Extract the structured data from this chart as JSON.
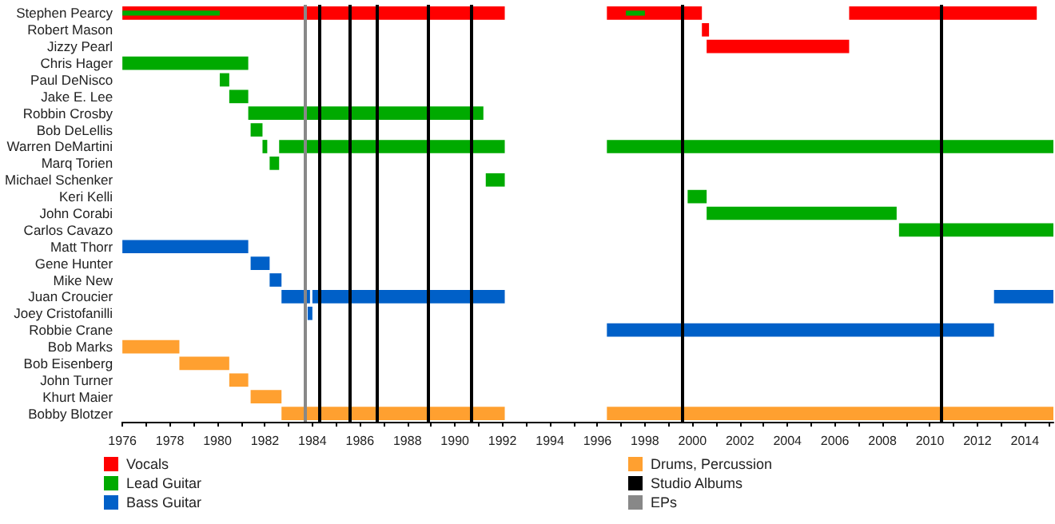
{
  "chart_data": {
    "type": "bar",
    "orientation": "horizontal",
    "legend": "bottom",
    "grid": false,
    "categories": [
      "Stephen Pearcy",
      "Robert Mason",
      "Jizzy Pearl",
      "Chris Hager",
      "Paul DeNisco",
      "Jake E. Lee",
      "Robbin Crosby",
      "Bob DeLellis",
      "Warren DeMartini",
      "Marq Torien",
      "Michael Schenker",
      "Keri Kelli",
      "John Corabi",
      "Carlos Cavazo",
      "Matt Thorr",
      "Gene Hunter",
      "Mike New",
      "Juan Croucier",
      "Joey Cristofanilli",
      "Robbie Crane",
      "Bob Marks",
      "Bob Eisenberg",
      "John Turner",
      "Khurt Maier",
      "Bobby Blotzer"
    ],
    "xlim": [
      1976,
      2015.2
    ],
    "xticks": [
      1976,
      {
        "value": 1977,
        "label": null
      },
      1978,
      {
        "value": 1979,
        "label": null
      },
      1980,
      {
        "value": 1981,
        "label": null
      },
      1982,
      {
        "value": 1983,
        "label": null
      },
      1984,
      {
        "value": 1985,
        "label": null
      },
      1986,
      {
        "value": 1987,
        "label": null
      },
      1988,
      {
        "value": 1989,
        "label": null
      },
      1990,
      {
        "value": 1991,
        "label": null
      },
      1992,
      {
        "value": 1993,
        "label": null
      },
      1994,
      {
        "value": 1995,
        "label": null
      },
      1996,
      {
        "value": 1997,
        "label": null
      },
      1998,
      {
        "value": 1999,
        "label": null
      },
      2000,
      {
        "value": 2001,
        "label": null
      },
      2002,
      {
        "value": 2003,
        "label": null
      },
      2004,
      {
        "value": 2005,
        "label": null
      },
      2006,
      {
        "value": 2007,
        "label": null
      },
      2008,
      {
        "value": 2009,
        "label": null
      },
      2010,
      {
        "value": 2011,
        "label": null
      },
      2012,
      {
        "value": 2013,
        "label": null
      },
      2014,
      {
        "value": 2015,
        "label": null
      }
    ],
    "series": [
      {
        "name": "Vocals",
        "color": "#ff0000",
        "base": [
          1976,
          2000.4,
          2000.6,
          null,
          null,
          null,
          null,
          null,
          null,
          null,
          null,
          null,
          null,
          null,
          null,
          null,
          null,
          null,
          null,
          null,
          null,
          null,
          null,
          null,
          null
        ],
        "values": [
          16.1,
          0.3,
          6.0,
          null,
          null,
          null,
          null,
          null,
          null,
          null,
          null,
          null,
          null,
          null,
          null,
          null,
          null,
          null,
          null,
          null,
          null,
          null,
          null,
          null,
          null
        ]
      },
      {
        "color": "#ff0000",
        "base": [
          1996.4,
          null,
          null,
          null,
          null,
          null,
          null,
          null,
          null,
          null,
          null,
          null,
          null,
          null,
          null,
          null,
          null,
          null,
          null,
          null,
          null,
          null,
          null,
          null,
          null
        ],
        "values": [
          4.0,
          null,
          null,
          null,
          null,
          null,
          null,
          null,
          null,
          null,
          null,
          null,
          null,
          null,
          null,
          null,
          null,
          null,
          null,
          null,
          null,
          null,
          null,
          null,
          null
        ]
      },
      {
        "color": "#ff0000",
        "base": [
          2006.6,
          null,
          null,
          null,
          null,
          null,
          null,
          null,
          null,
          null,
          null,
          null,
          null,
          null,
          null,
          null,
          null,
          null,
          null,
          null,
          null,
          null,
          null,
          null,
          null
        ],
        "values": [
          7.9,
          null,
          null,
          null,
          null,
          null,
          null,
          null,
          null,
          null,
          null,
          null,
          null,
          null,
          null,
          null,
          null,
          null,
          null,
          null,
          null,
          null,
          null,
          null,
          null
        ]
      },
      {
        "name": "Lead Guitar",
        "color": "#00aa00",
        "base": [
          1976,
          null,
          null,
          1976,
          1980.1,
          1980.5,
          1981.3,
          1981.4,
          1981.9,
          1982.2,
          1991.3,
          1999.8,
          2000.6,
          2008.7,
          null,
          null,
          null,
          null,
          null,
          null,
          null,
          null,
          null,
          null,
          null
        ],
        "values": [
          4.1,
          null,
          null,
          5.3,
          0.4,
          0.8,
          9.9,
          0.5,
          0.2,
          0.4,
          0.8,
          0.8,
          8.0,
          6.5,
          null,
          null,
          null,
          null,
          null,
          null,
          null,
          null,
          null,
          null,
          null
        ]
      },
      {
        "color": "#00aa00",
        "base": [
          1997.2,
          null,
          null,
          null,
          null,
          null,
          null,
          null,
          1982.6,
          null,
          null,
          null,
          null,
          null,
          null,
          null,
          null,
          null,
          null,
          null,
          null,
          null,
          null,
          null,
          null
        ],
        "values": [
          0.8,
          null,
          null,
          null,
          null,
          null,
          null,
          null,
          9.5,
          null,
          null,
          null,
          null,
          null,
          null,
          null,
          null,
          null,
          null,
          null,
          null,
          null,
          null,
          null,
          null
        ]
      },
      {
        "color": "#00aa00",
        "base": [
          null,
          null,
          null,
          null,
          null,
          null,
          null,
          null,
          1996.4,
          null,
          null,
          null,
          null,
          null,
          null,
          null,
          null,
          null,
          null,
          null,
          null,
          null,
          null,
          null,
          null
        ],
        "values": [
          null,
          null,
          null,
          null,
          null,
          null,
          null,
          null,
          18.8,
          null,
          null,
          null,
          null,
          null,
          null,
          null,
          null,
          null,
          null,
          null,
          null,
          null,
          null,
          null,
          null
        ]
      },
      {
        "name": "Bass Guitar",
        "color": "#0060c8",
        "base": [
          null,
          null,
          null,
          null,
          null,
          null,
          null,
          null,
          null,
          null,
          null,
          null,
          null,
          null,
          1976,
          1981.4,
          1982.2,
          1982.7,
          1983.8,
          1996.4,
          null,
          null,
          null,
          null,
          null
        ],
        "values": [
          null,
          null,
          null,
          null,
          null,
          null,
          null,
          null,
          null,
          null,
          null,
          null,
          null,
          null,
          5.3,
          0.8,
          0.5,
          1.2,
          0.2,
          16.3,
          null,
          null,
          null,
          null,
          null
        ]
      },
      {
        "color": "#0060c8",
        "base": [
          null,
          null,
          null,
          null,
          null,
          null,
          null,
          null,
          null,
          null,
          null,
          null,
          null,
          null,
          null,
          null,
          null,
          1984.0,
          null,
          null,
          null,
          null,
          null,
          null,
          null
        ],
        "values": [
          null,
          null,
          null,
          null,
          null,
          null,
          null,
          null,
          null,
          null,
          null,
          null,
          null,
          null,
          null,
          null,
          null,
          8.1,
          null,
          null,
          null,
          null,
          null,
          null,
          null
        ]
      },
      {
        "color": "#0060c8",
        "base": [
          null,
          null,
          null,
          null,
          null,
          null,
          null,
          null,
          null,
          null,
          null,
          null,
          null,
          null,
          null,
          null,
          null,
          2012.7,
          null,
          null,
          null,
          null,
          null,
          null,
          null
        ],
        "values": [
          null,
          null,
          null,
          null,
          null,
          null,
          null,
          null,
          null,
          null,
          null,
          null,
          null,
          null,
          null,
          null,
          null,
          2.5,
          null,
          null,
          null,
          null,
          null,
          null,
          null
        ]
      },
      {
        "name": "Drums, Percussion",
        "color": "#ffa030",
        "base": [
          null,
          null,
          null,
          null,
          null,
          null,
          null,
          null,
          null,
          null,
          null,
          null,
          null,
          null,
          null,
          null,
          null,
          null,
          null,
          null,
          1976,
          1978.4,
          1980.5,
          1981.4,
          1982.7
        ],
        "values": [
          null,
          null,
          null,
          null,
          null,
          null,
          null,
          null,
          null,
          null,
          null,
          null,
          null,
          null,
          null,
          null,
          null,
          null,
          null,
          null,
          2.4,
          2.1,
          0.8,
          1.3,
          9.4
        ]
      },
      {
        "color": "#ffa030",
        "base": [
          null,
          null,
          null,
          null,
          null,
          null,
          null,
          null,
          null,
          null,
          null,
          null,
          null,
          null,
          null,
          null,
          null,
          null,
          null,
          null,
          null,
          null,
          null,
          null,
          1996.4
        ],
        "values": [
          null,
          null,
          null,
          null,
          null,
          null,
          null,
          null,
          null,
          null,
          null,
          null,
          null,
          null,
          null,
          null,
          null,
          null,
          null,
          null,
          null,
          null,
          null,
          null,
          18.8
        ]
      }
    ],
    "ref_lines": [
      {
        "axis": "x",
        "value": 1984.3,
        "label": "Studio Albums",
        "color": "#000000"
      },
      {
        "axis": "x",
        "value": 1985.6,
        "color": "#000000"
      },
      {
        "axis": "x",
        "value": 1986.7,
        "color": "#000000"
      },
      {
        "axis": "x",
        "value": 1988.9,
        "color": "#000000"
      },
      {
        "axis": "x",
        "value": 1990.7,
        "color": "#000000"
      },
      {
        "axis": "x",
        "value": 1999.6,
        "color": "#000000"
      },
      {
        "axis": "x",
        "value": 2010.5,
        "color": "#000000"
      },
      {
        "axis": "x",
        "value": 1983.7,
        "label": "EPs",
        "color": "#888888"
      }
    ]
  }
}
